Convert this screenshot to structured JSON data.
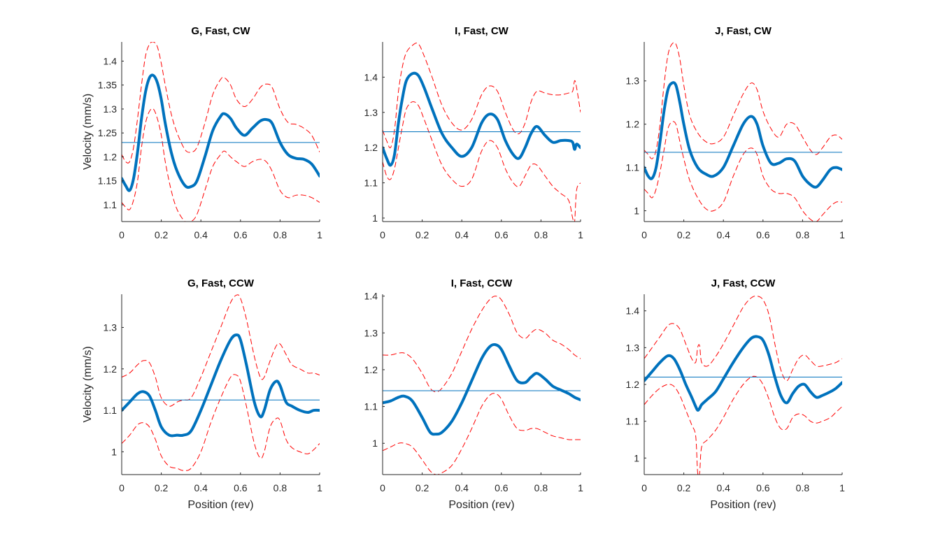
{
  "chart_data": [
    {
      "type": "line",
      "title": "G, Fast, CW",
      "xlabel": "",
      "ylabel": "Velocity (mm/s)",
      "xlim": [
        0,
        1
      ],
      "ylim": [
        1.065,
        1.44
      ],
      "xticks": [
        0,
        0.2,
        0.4,
        0.6,
        0.8,
        1
      ],
      "xtick_labels": [
        "0",
        "0.2",
        "0.4",
        "0.6",
        "0.8",
        "1"
      ],
      "yticks": [
        1.1,
        1.15,
        1.2,
        1.25,
        1.3,
        1.35,
        1.4
      ],
      "ytick_labels": [
        "1.1",
        "1.15",
        "1.2",
        "1.25",
        "1.3",
        "1.35",
        "1.4"
      ],
      "mean": 1.23,
      "x": [
        0,
        0.02,
        0.04,
        0.06,
        0.08,
        0.1,
        0.12,
        0.14,
        0.16,
        0.18,
        0.2,
        0.22,
        0.25,
        0.28,
        0.32,
        0.35,
        0.38,
        0.42,
        0.46,
        0.5,
        0.52,
        0.55,
        0.58,
        0.62,
        0.66,
        0.7,
        0.73,
        0.76,
        0.8,
        0.84,
        0.88,
        0.92,
        0.96,
        1
      ],
      "series": [
        {
          "values": [
            1.155,
            1.14,
            1.13,
            1.155,
            1.21,
            1.28,
            1.335,
            1.365,
            1.37,
            1.355,
            1.32,
            1.27,
            1.21,
            1.17,
            1.14,
            1.138,
            1.15,
            1.2,
            1.255,
            1.285,
            1.29,
            1.28,
            1.26,
            1.245,
            1.26,
            1.275,
            1.278,
            1.27,
            1.23,
            1.205,
            1.197,
            1.195,
            1.185,
            1.16
          ]
        },
        {
          "values": [
            1.205,
            1.19,
            1.19,
            1.22,
            1.28,
            1.35,
            1.41,
            1.435,
            1.44,
            1.43,
            1.395,
            1.35,
            1.29,
            1.25,
            1.215,
            1.21,
            1.22,
            1.27,
            1.33,
            1.362,
            1.365,
            1.35,
            1.32,
            1.305,
            1.32,
            1.345,
            1.352,
            1.345,
            1.3,
            1.272,
            1.268,
            1.26,
            1.245,
            1.21
          ]
        },
        {
          "values": [
            1.105,
            1.095,
            1.09,
            1.11,
            1.15,
            1.22,
            1.27,
            1.295,
            1.3,
            1.28,
            1.245,
            1.19,
            1.13,
            1.09,
            1.065,
            1.065,
            1.08,
            1.13,
            1.18,
            1.205,
            1.212,
            1.2,
            1.19,
            1.18,
            1.19,
            1.195,
            1.19,
            1.17,
            1.13,
            1.115,
            1.12,
            1.12,
            1.115,
            1.105
          ]
        }
      ]
    },
    {
      "type": "line",
      "title": "I, Fast, CW",
      "xlabel": "",
      "ylabel": "",
      "xlim": [
        0,
        1
      ],
      "ylim": [
        0.99,
        1.5
      ],
      "xticks": [
        0,
        0.2,
        0.4,
        0.6,
        0.8,
        1
      ],
      "xtick_labels": [
        "0",
        "0.2",
        "0.4",
        "0.6",
        "0.8",
        "1"
      ],
      "yticks": [
        1,
        1.1,
        1.2,
        1.3,
        1.4
      ],
      "ytick_labels": [
        "1",
        "1.1",
        "1.2",
        "1.3",
        "1.4"
      ],
      "mean": 1.245,
      "x": [
        0,
        0.02,
        0.04,
        0.06,
        0.08,
        0.1,
        0.12,
        0.15,
        0.18,
        0.21,
        0.25,
        0.3,
        0.35,
        0.4,
        0.45,
        0.5,
        0.54,
        0.58,
        0.62,
        0.66,
        0.69,
        0.72,
        0.75,
        0.78,
        0.82,
        0.86,
        0.9,
        0.94,
        0.96,
        0.97,
        0.98,
        1
      ],
      "series": [
        {
          "values": [
            1.2,
            1.17,
            1.15,
            1.18,
            1.27,
            1.34,
            1.39,
            1.41,
            1.405,
            1.37,
            1.31,
            1.24,
            1.2,
            1.175,
            1.2,
            1.27,
            1.295,
            1.28,
            1.22,
            1.18,
            1.17,
            1.2,
            1.24,
            1.26,
            1.235,
            1.215,
            1.22,
            1.22,
            1.215,
            1.195,
            1.21,
            1.2
          ]
        },
        {
          "values": [
            1.25,
            1.22,
            1.2,
            1.25,
            1.36,
            1.43,
            1.47,
            1.49,
            1.495,
            1.46,
            1.4,
            1.32,
            1.27,
            1.25,
            1.28,
            1.35,
            1.375,
            1.36,
            1.3,
            1.25,
            1.24,
            1.27,
            1.33,
            1.36,
            1.355,
            1.35,
            1.35,
            1.355,
            1.36,
            1.39,
            1.37,
            1.3
          ]
        },
        {
          "values": [
            1.16,
            1.12,
            1.11,
            1.14,
            1.2,
            1.26,
            1.31,
            1.33,
            1.32,
            1.28,
            1.22,
            1.15,
            1.11,
            1.09,
            1.11,
            1.19,
            1.22,
            1.2,
            1.14,
            1.1,
            1.09,
            1.12,
            1.15,
            1.15,
            1.12,
            1.09,
            1.07,
            1.05,
            1.0,
            0.99,
            1.08,
            1.1
          ]
        }
      ]
    },
    {
      "type": "line",
      "title": "J, Fast, CW",
      "xlabel": "",
      "ylabel": "",
      "xlim": [
        0,
        1
      ],
      "ylim": [
        0.975,
        1.39
      ],
      "xticks": [
        0,
        0.2,
        0.4,
        0.6,
        0.8,
        1
      ],
      "xtick_labels": [
        "0",
        "0.2",
        "0.4",
        "0.6",
        "0.8",
        "1"
      ],
      "yticks": [
        1,
        1.1,
        1.2,
        1.3
      ],
      "ytick_labels": [
        "1",
        "1.1",
        "1.2",
        "1.3"
      ],
      "mean": 1.135,
      "x": [
        0,
        0.02,
        0.04,
        0.06,
        0.08,
        0.1,
        0.12,
        0.14,
        0.16,
        0.18,
        0.2,
        0.23,
        0.27,
        0.31,
        0.35,
        0.4,
        0.45,
        0.5,
        0.54,
        0.57,
        0.6,
        0.64,
        0.68,
        0.72,
        0.76,
        0.8,
        0.84,
        0.87,
        0.9,
        0.94,
        0.97,
        1
      ],
      "series": [
        {
          "values": [
            1.1,
            1.08,
            1.075,
            1.1,
            1.16,
            1.23,
            1.28,
            1.295,
            1.29,
            1.25,
            1.2,
            1.14,
            1.1,
            1.085,
            1.08,
            1.1,
            1.15,
            1.2,
            1.218,
            1.2,
            1.15,
            1.11,
            1.11,
            1.12,
            1.115,
            1.08,
            1.06,
            1.055,
            1.07,
            1.095,
            1.1,
            1.095
          ]
        },
        {
          "values": [
            1.14,
            1.13,
            1.12,
            1.14,
            1.2,
            1.29,
            1.36,
            1.385,
            1.385,
            1.35,
            1.29,
            1.22,
            1.18,
            1.16,
            1.155,
            1.17,
            1.22,
            1.27,
            1.295,
            1.28,
            1.23,
            1.19,
            1.17,
            1.2,
            1.2,
            1.17,
            1.14,
            1.13,
            1.145,
            1.17,
            1.175,
            1.165
          ]
        },
        {
          "values": [
            1.05,
            1.04,
            1.03,
            1.05,
            1.09,
            1.14,
            1.19,
            1.205,
            1.2,
            1.16,
            1.12,
            1.07,
            1.03,
            1.005,
            1.0,
            1.02,
            1.08,
            1.13,
            1.145,
            1.13,
            1.08,
            1.05,
            1.04,
            1.04,
            1.03,
            1.0,
            0.98,
            0.975,
            0.99,
            1.01,
            1.02,
            1.02
          ]
        }
      ]
    },
    {
      "type": "line",
      "title": "G, Fast, CCW",
      "xlabel": "Position (rev)",
      "ylabel": "Velocity (mm/s)",
      "xlim": [
        0,
        1
      ],
      "ylim": [
        0.945,
        1.38
      ],
      "xticks": [
        0,
        0.2,
        0.4,
        0.6,
        0.8,
        1
      ],
      "xtick_labels": [
        "0",
        "0.2",
        "0.4",
        "0.6",
        "0.8",
        "1"
      ],
      "yticks": [
        1,
        1.1,
        1.2,
        1.3
      ],
      "ytick_labels": [
        "1",
        "1.1",
        "1.2",
        "1.3"
      ],
      "mean": 1.125,
      "x": [
        0,
        0.04,
        0.08,
        0.11,
        0.14,
        0.17,
        0.2,
        0.24,
        0.28,
        0.31,
        0.35,
        0.4,
        0.45,
        0.5,
        0.55,
        0.58,
        0.6,
        0.63,
        0.67,
        0.7,
        0.72,
        0.75,
        0.78,
        0.8,
        0.83,
        0.86,
        0.9,
        0.94,
        0.97,
        1
      ],
      "series": [
        {
          "values": [
            1.1,
            1.12,
            1.14,
            1.145,
            1.135,
            1.1,
            1.06,
            1.04,
            1.04,
            1.04,
            1.05,
            1.1,
            1.16,
            1.22,
            1.27,
            1.282,
            1.27,
            1.21,
            1.12,
            1.085,
            1.1,
            1.15,
            1.17,
            1.16,
            1.12,
            1.11,
            1.1,
            1.095,
            1.1,
            1.1
          ]
        },
        {
          "values": [
            1.18,
            1.19,
            1.21,
            1.22,
            1.215,
            1.18,
            1.13,
            1.11,
            1.12,
            1.125,
            1.13,
            1.18,
            1.24,
            1.3,
            1.36,
            1.378,
            1.37,
            1.32,
            1.23,
            1.18,
            1.18,
            1.22,
            1.255,
            1.26,
            1.235,
            1.21,
            1.2,
            1.19,
            1.19,
            1.185
          ]
        },
        {
          "values": [
            1.02,
            1.04,
            1.065,
            1.07,
            1.06,
            1.03,
            0.99,
            0.965,
            0.96,
            0.955,
            0.96,
            1.0,
            1.07,
            1.13,
            1.18,
            1.185,
            1.17,
            1.11,
            1.02,
            0.985,
            1.0,
            1.06,
            1.08,
            1.075,
            1.03,
            1.01,
            1.0,
            0.995,
            1.005,
            1.02
          ]
        }
      ]
    },
    {
      "type": "line",
      "title": "I, Fast, CCW",
      "xlabel": "Position (rev)",
      "ylabel": "",
      "xlim": [
        0,
        1
      ],
      "ylim": [
        0.915,
        1.405
      ],
      "xticks": [
        0,
        0.2,
        0.4,
        0.6,
        0.8,
        1
      ],
      "xtick_labels": [
        "0",
        "0.2",
        "0.4",
        "0.6",
        "0.8",
        "1"
      ],
      "yticks": [
        1,
        1.1,
        1.2,
        1.3,
        1.4
      ],
      "ytick_labels": [
        "1",
        "1.1",
        "1.2",
        "1.3",
        "1.4"
      ],
      "mean": 1.143,
      "x": [
        0,
        0.04,
        0.08,
        0.11,
        0.15,
        0.2,
        0.24,
        0.27,
        0.3,
        0.35,
        0.4,
        0.45,
        0.5,
        0.54,
        0.57,
        0.6,
        0.64,
        0.68,
        0.72,
        0.75,
        0.78,
        0.82,
        0.86,
        0.9,
        0.94,
        0.97,
        1
      ],
      "series": [
        {
          "values": [
            1.11,
            1.115,
            1.125,
            1.128,
            1.115,
            1.07,
            1.03,
            1.025,
            1.03,
            1.06,
            1.11,
            1.17,
            1.23,
            1.262,
            1.268,
            1.255,
            1.21,
            1.17,
            1.165,
            1.18,
            1.19,
            1.175,
            1.155,
            1.145,
            1.135,
            1.125,
            1.118
          ]
        },
        {
          "values": [
            1.24,
            1.24,
            1.245,
            1.245,
            1.23,
            1.19,
            1.15,
            1.14,
            1.15,
            1.19,
            1.25,
            1.31,
            1.36,
            1.39,
            1.4,
            1.39,
            1.35,
            1.3,
            1.285,
            1.3,
            1.31,
            1.3,
            1.28,
            1.27,
            1.255,
            1.24,
            1.23
          ]
        },
        {
          "values": [
            0.98,
            0.99,
            1.0,
            1.0,
            0.99,
            0.955,
            0.925,
            0.915,
            0.92,
            0.94,
            0.985,
            1.04,
            1.1,
            1.13,
            1.135,
            1.12,
            1.075,
            1.04,
            1.035,
            1.04,
            1.04,
            1.03,
            1.02,
            1.015,
            1.01,
            1.01,
            1.01
          ]
        }
      ]
    },
    {
      "type": "line",
      "title": "J, Fast, CCW",
      "xlabel": "Position (rev)",
      "ylabel": "",
      "xlim": [
        0,
        1
      ],
      "ylim": [
        0.955,
        1.445
      ],
      "xticks": [
        0,
        0.2,
        0.4,
        0.6,
        0.8,
        1
      ],
      "xtick_labels": [
        "0",
        "0.2",
        "0.4",
        "0.6",
        "0.8",
        "1"
      ],
      "yticks": [
        1,
        1.1,
        1.2,
        1.3,
        1.4
      ],
      "ytick_labels": [
        "1",
        "1.1",
        "1.2",
        "1.3",
        "1.4"
      ],
      "mean": 1.22,
      "x": [
        0,
        0.04,
        0.08,
        0.12,
        0.15,
        0.18,
        0.21,
        0.24,
        0.26,
        0.27,
        0.28,
        0.29,
        0.32,
        0.36,
        0.4,
        0.45,
        0.5,
        0.54,
        0.57,
        0.6,
        0.63,
        0.66,
        0.69,
        0.72,
        0.75,
        0.78,
        0.81,
        0.84,
        0.87,
        0.9,
        0.94,
        0.97,
        1
      ],
      "series": [
        {
          "values": [
            1.21,
            1.235,
            1.26,
            1.278,
            1.27,
            1.24,
            1.2,
            1.165,
            1.14,
            1.13,
            1.135,
            1.145,
            1.16,
            1.18,
            1.215,
            1.26,
            1.3,
            1.325,
            1.33,
            1.32,
            1.28,
            1.22,
            1.17,
            1.15,
            1.175,
            1.195,
            1.2,
            1.18,
            1.165,
            1.17,
            1.18,
            1.19,
            1.205
          ]
        },
        {
          "values": [
            1.27,
            1.3,
            1.33,
            1.36,
            1.365,
            1.35,
            1.31,
            1.27,
            1.26,
            1.3,
            1.305,
            1.26,
            1.25,
            1.275,
            1.31,
            1.36,
            1.41,
            1.435,
            1.44,
            1.43,
            1.39,
            1.31,
            1.24,
            1.21,
            1.24,
            1.27,
            1.28,
            1.265,
            1.25,
            1.25,
            1.255,
            1.26,
            1.27
          ]
        },
        {
          "values": [
            1.145,
            1.17,
            1.19,
            1.2,
            1.195,
            1.17,
            1.13,
            1.09,
            1.06,
            0.96,
            0.96,
            1.03,
            1.05,
            1.075,
            1.11,
            1.16,
            1.2,
            1.22,
            1.22,
            1.2,
            1.16,
            1.11,
            1.08,
            1.08,
            1.11,
            1.12,
            1.115,
            1.1,
            1.095,
            1.1,
            1.11,
            1.125,
            1.14
          ]
        }
      ]
    }
  ]
}
